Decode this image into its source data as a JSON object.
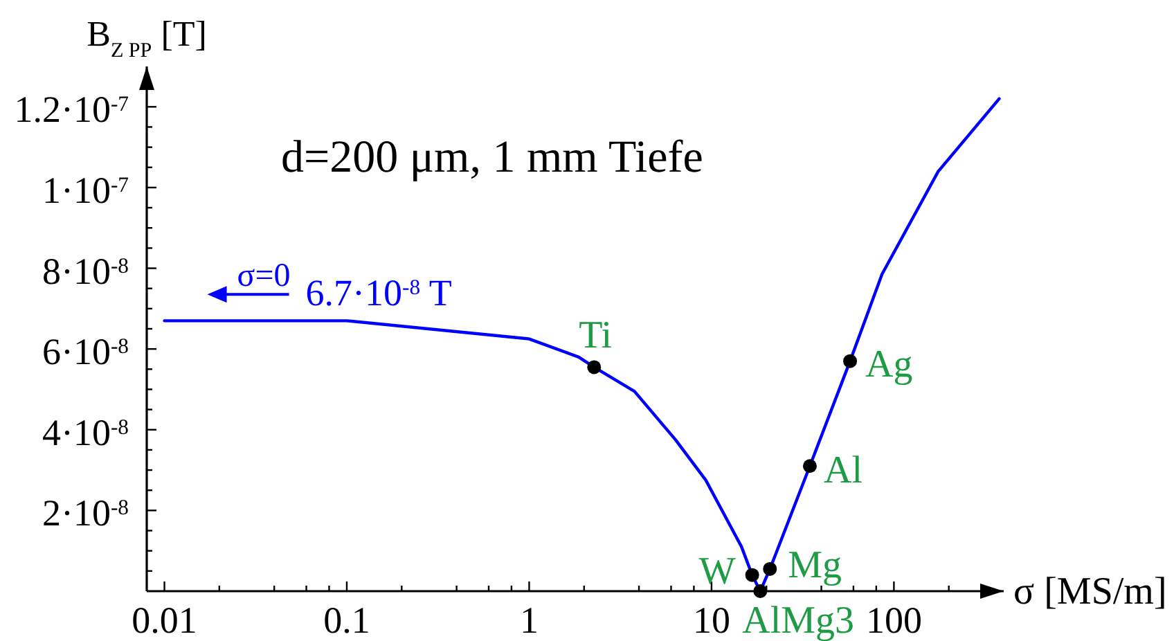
{
  "chart_data": {
    "type": "line",
    "title": "d=200 μm, 1 mm Tiefe",
    "xlabel": "σ [MS/m]",
    "ylabel": "B$_{Z PP}$ [T]",
    "log": "x",
    "xlim": [
      0.008,
      400
    ],
    "ylim": [
      0,
      1.3e-07
    ],
    "xticks": [
      0.01,
      {
        "value": 0.02,
        "label": null
      },
      {
        "value": 0.04,
        "label": null
      },
      {
        "value": 0.06,
        "label": null
      },
      {
        "value": 0.08,
        "label": null
      },
      0.1,
      {
        "value": 0.2,
        "label": null
      },
      {
        "value": 0.4,
        "label": null
      },
      {
        "value": 0.6,
        "label": null
      },
      {
        "value": 0.8,
        "label": null
      },
      1,
      {
        "value": 2,
        "label": null
      },
      {
        "value": 4,
        "label": null
      },
      {
        "value": 6,
        "label": null
      },
      {
        "value": 8,
        "label": null
      },
      10,
      {
        "value": 20,
        "label": null
      },
      {
        "value": 40,
        "label": null
      },
      {
        "value": 60,
        "label": null
      },
      {
        "value": 80,
        "label": null
      },
      100,
      {
        "value": 200,
        "label": null
      }
    ],
    "yticks": [
      {
        "value": 5e-09,
        "label": null
      },
      {
        "value": 1e-08,
        "label": null
      },
      {
        "value": 1.5e-08,
        "label": null
      },
      {
        "value": 2e-08,
        "label": "2·10$^{-8}$"
      },
      {
        "value": 2.5e-08,
        "label": null
      },
      {
        "value": 3e-08,
        "label": null
      },
      {
        "value": 3.5e-08,
        "label": null
      },
      {
        "value": 4e-08,
        "label": "4·10$^{-8}$"
      },
      {
        "value": 4.5e-08,
        "label": null
      },
      {
        "value": 5e-08,
        "label": null
      },
      {
        "value": 5.5e-08,
        "label": null
      },
      {
        "value": 6e-08,
        "label": "6·10$^{-8}$"
      },
      {
        "value": 6.5e-08,
        "label": null
      },
      {
        "value": 7e-08,
        "label": null
      },
      {
        "value": 7.5e-08,
        "label": null
      },
      {
        "value": 8e-08,
        "label": "8·10$^{-8}$"
      },
      {
        "value": 8.5e-08,
        "label": null
      },
      {
        "value": 9e-08,
        "label": null
      },
      {
        "value": 9.5e-08,
        "label": null
      },
      {
        "value": 1e-07,
        "label": "1·10$^{-7}$"
      },
      {
        "value": 1.05e-07,
        "label": null
      },
      {
        "value": 1.1e-07,
        "label": null
      },
      {
        "value": 1.15e-07,
        "label": null
      },
      {
        "value": 1.2e-07,
        "label": "1.2·10$^{-7}$"
      },
      {
        "value": 1.25e-07,
        "label": null
      }
    ],
    "series": [
      {
        "type": "line",
        "color": "#0000ff",
        "x": [
          0.01,
          0.1,
          1,
          1.87,
          2.27,
          3.78,
          6.35,
          9.3,
          14.6,
          16.7,
          18.5,
          20.9,
          34.6,
          57.5,
          86,
          175,
          378
        ],
        "values": [
          6.7e-08,
          6.7e-08,
          6.25e-08,
          5.8e-08,
          5.55e-08,
          4.95e-08,
          3.75e-08,
          2.75e-08,
          1.1e-08,
          4e-09,
          0,
          5.5e-09,
          3.1e-08,
          5.7e-08,
          7.85e-08,
          1.04e-07,
          1.22e-07
        ]
      },
      {
        "type": "scatter",
        "color": "#000000",
        "marker": "circle",
        "x": [
          2.27,
          16.7,
          18.5,
          20.9,
          34.6,
          57.5
        ],
        "values": [
          5.55e-08,
          4e-09,
          0,
          5.5e-09,
          3.1e-08,
          5.7e-08
        ]
      }
    ],
    "annotations": [
      "σ=0",
      "6.7·10$^{-8}$ T",
      {
        "text": "Ti",
        "x": 2.27,
        "y": 5.55e-08
      },
      {
        "text": "W",
        "x": 16.7,
        "y": 4e-09
      },
      {
        "text": "AlMg3",
        "x": 18.5,
        "y": 0
      },
      {
        "text": "Mg",
        "x": 20.9,
        "y": 5.5e-09
      },
      {
        "text": "Al",
        "x": 34.6,
        "y": 3.1e-08
      },
      {
        "text": "Ag",
        "x": 57.5,
        "y": 5.7e-08
      }
    ]
  }
}
